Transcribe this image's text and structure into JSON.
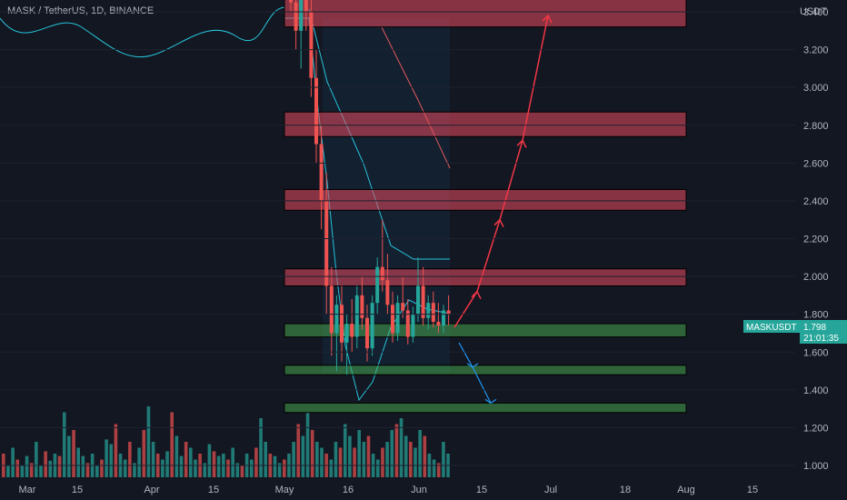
{
  "header": {
    "symbol_line": "MASK / TetherUS, 1D, BINANCE"
  },
  "currency_label": "USDT",
  "symbol_badge": {
    "label": "MASKUSDT",
    "price": "1.798",
    "countdown": "21:01:35"
  },
  "colors": {
    "background": "#131722",
    "up": "#26a69a",
    "down": "#ef5350",
    "resistance_zone": "#e84a5f",
    "support_zone": "#4caf50",
    "badge": "#26a69a",
    "ema": "#26c6da",
    "arrow_up": "#f23645",
    "arrow_down": "#2196f3"
  },
  "chart_data": {
    "type": "candlestick",
    "title": "MASK / TetherUS, 1D, BINANCE",
    "y_tick_labels": [
      "3.400",
      "3.200",
      "3.000",
      "2.800",
      "2.600",
      "2.400",
      "2.200",
      "2.000",
      "1.800",
      "1.600",
      "1.400",
      "1.200",
      "1.000"
    ],
    "x_tick_labels": [
      "Mar",
      "15",
      "Apr",
      "15",
      "May",
      "16",
      "Jun",
      "15",
      "Jul",
      "18",
      "Aug",
      "15"
    ],
    "last_price": 1.798,
    "resistance_zones": [
      [
        3.32,
        3.47
      ],
      [
        2.74,
        2.87
      ],
      [
        2.35,
        2.46
      ],
      [
        1.95,
        2.04
      ]
    ],
    "support_zones": [
      [
        1.68,
        1.75
      ],
      [
        1.48,
        1.53
      ],
      [
        1.28,
        1.33
      ]
    ],
    "projected_path_up": [
      1.73,
      1.92,
      2.3,
      2.72,
      3.38
    ],
    "projected_path_down": [
      1.65,
      1.52,
      1.33
    ],
    "candles": [
      {
        "o": 3.55,
        "h": 3.8,
        "l": 3.4,
        "c": 3.45
      },
      {
        "o": 3.45,
        "h": 3.7,
        "l": 3.2,
        "c": 3.3
      },
      {
        "o": 3.3,
        "h": 3.6,
        "l": 3.1,
        "c": 3.55
      },
      {
        "o": 3.55,
        "h": 3.75,
        "l": 3.3,
        "c": 3.4
      },
      {
        "o": 3.4,
        "h": 3.5,
        "l": 2.95,
        "c": 3.05
      },
      {
        "o": 3.05,
        "h": 3.2,
        "l": 2.6,
        "c": 2.7
      },
      {
        "o": 2.7,
        "h": 2.8,
        "l": 2.25,
        "c": 2.4
      },
      {
        "o": 2.4,
        "h": 2.55,
        "l": 1.8,
        "c": 1.95
      },
      {
        "o": 1.95,
        "h": 2.05,
        "l": 1.58,
        "c": 1.7
      },
      {
        "o": 1.7,
        "h": 1.9,
        "l": 1.5,
        "c": 1.85
      },
      {
        "o": 1.85,
        "h": 1.95,
        "l": 1.55,
        "c": 1.65
      },
      {
        "o": 1.65,
        "h": 1.8,
        "l": 1.48,
        "c": 1.75
      },
      {
        "o": 1.75,
        "h": 1.88,
        "l": 1.6,
        "c": 1.68
      },
      {
        "o": 1.68,
        "h": 1.95,
        "l": 1.62,
        "c": 1.9
      },
      {
        "o": 1.9,
        "h": 2.0,
        "l": 1.72,
        "c": 1.78
      },
      {
        "o": 1.78,
        "h": 1.85,
        "l": 1.55,
        "c": 1.62
      },
      {
        "o": 1.62,
        "h": 1.9,
        "l": 1.58,
        "c": 1.86
      },
      {
        "o": 1.86,
        "h": 2.1,
        "l": 1.8,
        "c": 2.05
      },
      {
        "o": 2.05,
        "h": 2.3,
        "l": 1.92,
        "c": 1.98
      },
      {
        "o": 1.98,
        "h": 2.12,
        "l": 1.8,
        "c": 1.85
      },
      {
        "o": 1.85,
        "h": 1.92,
        "l": 1.65,
        "c": 1.7
      },
      {
        "o": 1.7,
        "h": 1.9,
        "l": 1.66,
        "c": 1.86
      },
      {
        "o": 1.86,
        "h": 2.0,
        "l": 1.78,
        "c": 1.82
      },
      {
        "o": 1.82,
        "h": 1.88,
        "l": 1.64,
        "c": 1.68
      },
      {
        "o": 1.68,
        "h": 1.84,
        "l": 1.65,
        "c": 1.8
      },
      {
        "o": 1.8,
        "h": 2.1,
        "l": 1.76,
        "c": 1.95
      },
      {
        "o": 1.95,
        "h": 2.05,
        "l": 1.74,
        "c": 1.78
      },
      {
        "o": 1.78,
        "h": 1.9,
        "l": 1.72,
        "c": 1.86
      },
      {
        "o": 1.86,
        "h": 1.92,
        "l": 1.73,
        "c": 1.76
      },
      {
        "o": 1.76,
        "h": 1.86,
        "l": 1.7,
        "c": 1.74
      },
      {
        "o": 1.74,
        "h": 1.85,
        "l": 1.7,
        "c": 1.82
      },
      {
        "o": 1.82,
        "h": 1.9,
        "l": 1.74,
        "c": 1.8
      }
    ],
    "volumes": [
      0.2,
      0.1,
      0.25,
      0.15,
      0.1,
      0.18,
      0.12,
      0.3,
      0.1,
      0.22,
      0.14,
      0.2,
      0.18,
      0.55,
      0.35,
      0.4,
      0.25,
      0.18,
      0.12,
      0.2,
      0.1,
      0.15,
      0.32,
      0.28,
      0.45,
      0.2,
      0.15,
      0.3,
      0.12,
      0.25,
      0.4,
      0.6,
      0.3,
      0.2,
      0.15,
      0.22,
      0.55,
      0.35,
      0.18,
      0.3,
      0.25,
      0.15,
      0.2,
      0.12,
      0.28,
      0.22,
      0.18,
      0.2,
      0.15,
      0.25,
      0.12,
      0.1,
      0.2,
      0.15,
      0.25,
      0.5,
      0.3,
      0.2,
      0.18,
      0.12,
      0.15,
      0.2,
      0.3,
      0.45,
      0.35,
      0.55,
      0.4,
      0.3,
      0.25,
      0.2,
      0.15,
      0.3,
      0.25,
      0.45,
      0.35,
      0.25,
      0.4,
      0.3,
      0.35,
      0.2,
      0.15,
      0.25,
      0.3,
      0.4,
      0.45,
      0.5,
      0.35,
      0.3,
      0.25,
      0.4,
      0.35,
      0.2,
      0.15,
      0.12,
      0.3,
      0.2
    ]
  }
}
